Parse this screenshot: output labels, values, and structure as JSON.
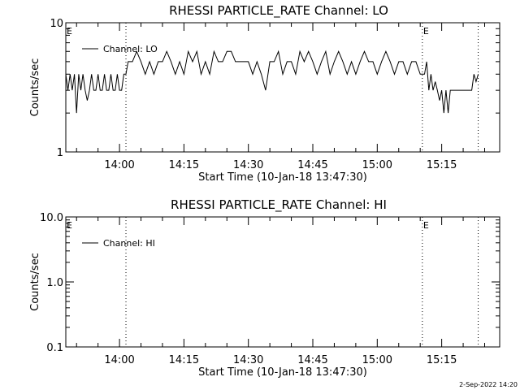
{
  "chart_data": [
    {
      "type": "line",
      "title": "RHESSI PARTICLE_RATE Channel: LO",
      "xlabel": "Start Time (10-Jan-18 13:47:30)",
      "ylabel": "Counts/sec",
      "y_scale": "log",
      "ylim": [
        1,
        10
      ],
      "y_ticks": [
        "1",
        "10"
      ],
      "xlim": [
        "13:47:30",
        "15:28:30"
      ],
      "x_ticks": [
        "14:00",
        "14:15",
        "14:30",
        "14:45",
        "15:00",
        "15:15"
      ],
      "legend": {
        "entries": [
          "Channel: LO"
        ],
        "position": "top-left"
      },
      "grid": false,
      "event_markers": [
        {
          "time": "13:47:30",
          "label": "E"
        },
        {
          "time": "14:01:30",
          "label": ""
        },
        {
          "time": "15:10:30",
          "label": "E"
        },
        {
          "time": "15:23:30",
          "label": ""
        }
      ],
      "series": [
        {
          "name": "Channel: LO",
          "x": [
            "13:47:30",
            "13:48:00",
            "13:48:30",
            "13:49:00",
            "13:49:30",
            "13:50:00",
            "13:50:30",
            "13:51:00",
            "13:51:30",
            "13:52:00",
            "13:52:30",
            "13:53:00",
            "13:53:30",
            "13:54:00",
            "13:54:30",
            "13:55:00",
            "13:55:30",
            "13:56:00",
            "13:56:30",
            "13:57:00",
            "13:57:30",
            "13:58:00",
            "13:58:30",
            "13:59:00",
            "13:59:30",
            "14:00:00",
            "14:00:30",
            "14:01:00",
            "14:01:30",
            "14:02:00",
            "14:03:00",
            "14:04:00",
            "14:05:00",
            "14:06:00",
            "14:07:00",
            "14:08:00",
            "14:09:00",
            "14:10:00",
            "14:11:00",
            "14:12:00",
            "14:13:00",
            "14:14:00",
            "14:15:00",
            "14:16:00",
            "14:17:00",
            "14:18:00",
            "14:19:00",
            "14:20:00",
            "14:21:00",
            "14:22:00",
            "14:23:00",
            "14:24:00",
            "14:25:00",
            "14:26:00",
            "14:27:00",
            "14:28:00",
            "14:29:00",
            "14:30:00",
            "14:31:00",
            "14:32:00",
            "14:33:00",
            "14:34:00",
            "14:35:00",
            "14:36:00",
            "14:37:00",
            "14:38:00",
            "14:39:00",
            "14:40:00",
            "14:41:00",
            "14:42:00",
            "14:43:00",
            "14:44:00",
            "14:45:00",
            "14:46:00",
            "14:47:00",
            "14:48:00",
            "14:49:00",
            "14:50:00",
            "14:51:00",
            "14:52:00",
            "14:53:00",
            "14:54:00",
            "14:55:00",
            "14:56:00",
            "14:57:00",
            "14:58:00",
            "14:59:00",
            "15:00:00",
            "15:01:00",
            "15:02:00",
            "15:03:00",
            "15:04:00",
            "15:05:00",
            "15:06:00",
            "15:07:00",
            "15:08:00",
            "15:09:00",
            "15:10:00",
            "15:10:30",
            "15:11:00",
            "15:11:30",
            "15:12:00",
            "15:12:30",
            "15:13:00",
            "15:13:30",
            "15:14:00",
            "15:14:30",
            "15:15:00",
            "15:15:30",
            "15:16:00",
            "15:16:30",
            "15:17:00",
            "15:18:00",
            "15:19:00",
            "15:20:00",
            "15:21:00",
            "15:22:00",
            "15:22:30",
            "15:23:00",
            "15:23:30"
          ],
          "values": [
            4,
            3,
            4,
            3,
            4,
            2,
            4,
            3,
            4,
            3,
            2.5,
            3,
            4,
            3,
            3,
            4,
            3,
            3,
            4,
            3,
            3,
            4,
            3,
            3,
            4,
            3,
            3,
            4,
            4,
            5,
            5,
            6,
            5,
            4,
            5,
            4,
            5,
            5,
            6,
            5,
            4,
            5,
            4,
            6,
            5,
            6,
            4,
            5,
            4,
            6,
            5,
            5,
            6,
            6,
            5,
            5,
            5,
            5,
            4,
            5,
            4,
            3,
            5,
            5,
            6,
            4,
            5,
            5,
            4,
            6,
            5,
            6,
            5,
            4,
            5,
            6,
            4,
            5,
            6,
            5,
            4,
            5,
            4,
            5,
            6,
            5,
            5,
            4,
            5,
            6,
            5,
            4,
            5,
            5,
            4,
            5,
            5,
            4,
            4,
            4,
            5,
            3,
            4,
            3,
            3.5,
            3,
            2.5,
            3,
            2,
            3,
            2,
            3,
            3,
            3,
            3,
            3,
            3,
            4,
            3.5,
            4
          ]
        }
      ]
    },
    {
      "type": "line",
      "title": "RHESSI PARTICLE_RATE Channel: HI",
      "xlabel": "Start Time (10-Jan-18 13:47:30)",
      "ylabel": "Counts/sec",
      "y_scale": "log",
      "ylim": [
        0.1,
        10
      ],
      "y_ticks": [
        "0.1",
        "1.0",
        "10.0"
      ],
      "xlim": [
        "13:47:30",
        "15:28:30"
      ],
      "x_ticks": [
        "14:00",
        "14:15",
        "14:30",
        "14:45",
        "15:00",
        "15:15"
      ],
      "legend": {
        "entries": [
          "Channel: HI"
        ],
        "position": "top-left"
      },
      "grid": false,
      "event_markers": [
        {
          "time": "13:47:30",
          "label": "E"
        },
        {
          "time": "14:01:30",
          "label": ""
        },
        {
          "time": "15:10:30",
          "label": "E"
        },
        {
          "time": "15:23:30",
          "label": ""
        }
      ],
      "series": [
        {
          "name": "Channel: HI",
          "x": [],
          "values": []
        }
      ]
    }
  ],
  "footer": {
    "timestamp": "2-Sep-2022 14:20"
  }
}
